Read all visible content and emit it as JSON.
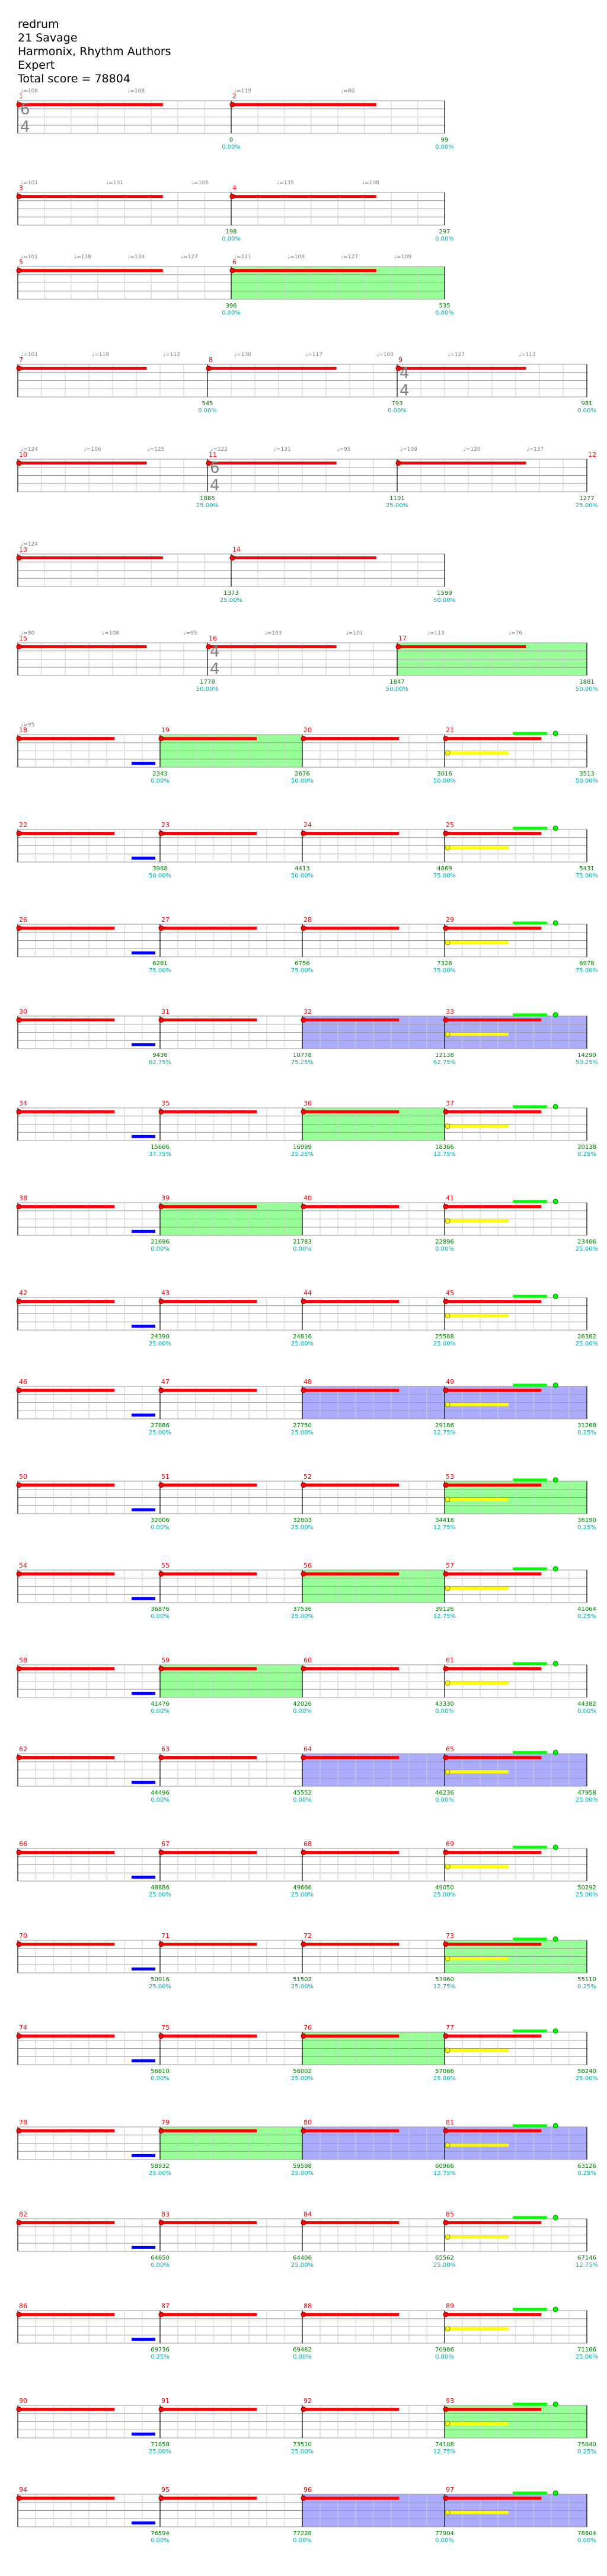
{
  "song": {
    "title": "redrum",
    "artist": "21 Savage",
    "charter": "Harmonix, Rhythm Authors",
    "difficulty": "Expert",
    "total_score_text": "Total score = 78804"
  },
  "colors": {
    "red_note": "#ff0000",
    "yellow_note": "#ffff00",
    "blue_note": "#0000ff",
    "green_note": "#00ff00",
    "orange_note": "#ff9900",
    "overdrive_fill": "#80ff80",
    "solo_fill": "#8080ff",
    "measure_number": "#ff0000",
    "score_text": "#007f00",
    "percent_text": "#00b0b0",
    "time_sig_text": "#808080"
  },
  "rows": [
    {
      "measures": [
        {
          "num": "1",
          "score": "",
          "pct": "",
          "ts": [
            "6",
            "4"
          ]
        },
        {
          "num": "2",
          "score": "0",
          "pct": "0.00%"
        },
        {
          "num": "",
          "score": "99",
          "pct": "0.00%"
        }
      ],
      "ticks": [
        "♩=108",
        "♩=108",
        "♩=119",
        "♩=80"
      ]
    },
    {
      "measures": [
        {
          "num": "3",
          "score": ""
        },
        {
          "num": "4",
          "score": "198",
          "pct": "0.00%"
        },
        {
          "num": "",
          "score": "297",
          "pct": "0.00%"
        }
      ],
      "ticks": [
        "♩=101",
        "♩=101",
        "♩=106",
        "♩=135",
        "♩=108"
      ]
    },
    {
      "measures": [
        {
          "num": "5",
          "score": ""
        },
        {
          "num": "6",
          "score": "396",
          "pct": "0.00%"
        },
        {
          "num": "",
          "score": "535",
          "pct": "0.00%"
        }
      ],
      "ticks": [
        "♩=101",
        "♩=138",
        "♩=134",
        "♩=127",
        "♩=121",
        "♩=108",
        "♩=127",
        "♩=109"
      ]
    },
    {
      "measures": [
        {
          "num": "7",
          "score": ""
        },
        {
          "num": "8",
          "score": "545",
          "pct": "0.00%"
        },
        {
          "num": "9",
          "score": "793",
          "pct": "0.00%",
          "ts": [
            "4",
            "4"
          ]
        },
        {
          "num": "",
          "score": "981",
          "pct": "0.00%"
        }
      ],
      "ticks": [
        "♩=101",
        "♩=119",
        "♩=112",
        "♩=130",
        "♩=117",
        "♩=100",
        "♩=127",
        "♩=112"
      ]
    },
    {
      "measures": [
        {
          "num": "10",
          "score": ""
        },
        {
          "num": "11",
          "score": "1885",
          "pct": "25.00%",
          "ts": [
            "6",
            "4"
          ]
        },
        {
          "num": "",
          "score": "1101",
          "pct": "25.00%"
        },
        {
          "num": "12",
          "score": "1277",
          "pct": "25.00%"
        }
      ],
      "ticks": [
        "♩=124",
        "♩=106",
        "♩=125",
        "♩=122",
        "♩=131",
        "♩=95",
        "♩=109",
        "♩=120",
        "♩=137"
      ]
    },
    {
      "measures": [
        {
          "num": "13",
          "score": ""
        },
        {
          "num": "14",
          "score": "1373",
          "pct": "25.00%"
        },
        {
          "num": "",
          "score": "1599",
          "pct": "50.00%"
        }
      ],
      "ticks": [
        "♩=124"
      ]
    },
    {
      "measures": [
        {
          "num": "15",
          "score": ""
        },
        {
          "num": "16",
          "score": "1778",
          "pct": "50.00%",
          "ts": [
            "4",
            "4"
          ]
        },
        {
          "num": "17",
          "score": "1847",
          "pct": "50.00%"
        },
        {
          "num": "",
          "score": "1881",
          "pct": "50.00%"
        }
      ],
      "ticks": [
        "♩=80",
        "♩=108",
        "♩=95",
        "♩=103",
        "♩=101",
        "♩=113",
        "♩=76"
      ]
    },
    {
      "measures": [
        {
          "num": "18",
          "score": ""
        },
        {
          "num": "19",
          "score": "2343",
          "pct": "0.00%"
        },
        {
          "num": "20",
          "score": "2676",
          "pct": "50.00%"
        },
        {
          "num": "21",
          "score": "3016",
          "pct": "50.00%"
        },
        {
          "num": "",
          "score": "3513",
          "pct": "50.00%"
        }
      ],
      "ticks": [
        "♩=95"
      ]
    },
    {
      "measures": [
        {
          "num": "22",
          "score": ""
        },
        {
          "num": "23",
          "score": "3968",
          "pct": "50.00%"
        },
        {
          "num": "24",
          "score": "4413",
          "pct": "50.00%"
        },
        {
          "num": "25",
          "score": "4869",
          "pct": "75.00%"
        },
        {
          "num": "",
          "score": "5431",
          "pct": "75.00%"
        }
      ]
    },
    {
      "measures": [
        {
          "num": "26",
          "score": ""
        },
        {
          "num": "27",
          "score": "6281",
          "pct": "75.00%"
        },
        {
          "num": "28",
          "score": "6756",
          "pct": "75.00%"
        },
        {
          "num": "29",
          "score": "7326",
          "pct": "75.00%"
        },
        {
          "num": "",
          "score": "6978",
          "pct": "75.00%"
        }
      ]
    },
    {
      "measures": [
        {
          "num": "30",
          "score": ""
        },
        {
          "num": "31",
          "score": "9436",
          "pct": "62.75%"
        },
        {
          "num": "32",
          "score": "10778",
          "pct": "75.25%"
        },
        {
          "num": "33",
          "score": "12138",
          "pct": "62.75%"
        },
        {
          "num": "",
          "score": "14290",
          "pct": "50.25%"
        }
      ]
    },
    {
      "measures": [
        {
          "num": "34",
          "score": ""
        },
        {
          "num": "35",
          "score": "15666",
          "pct": "37.75%"
        },
        {
          "num": "36",
          "score": "16999",
          "pct": "25.25%"
        },
        {
          "num": "37",
          "score": "18366",
          "pct": "12.75%"
        },
        {
          "num": "",
          "score": "20138",
          "pct": "0.25%"
        }
      ]
    },
    {
      "measures": [
        {
          "num": "38",
          "score": ""
        },
        {
          "num": "39",
          "score": "21696",
          "pct": "0.00%"
        },
        {
          "num": "40",
          "score": "21783",
          "pct": "0.00%"
        },
        {
          "num": "41",
          "score": "22896",
          "pct": "0.00%"
        },
        {
          "num": "",
          "score": "23466",
          "pct": "25.00%"
        }
      ]
    },
    {
      "measures": [
        {
          "num": "42",
          "score": ""
        },
        {
          "num": "43",
          "score": "24390",
          "pct": "25.00%"
        },
        {
          "num": "44",
          "score": "24816",
          "pct": "25.00%"
        },
        {
          "num": "45",
          "score": "25588",
          "pct": "25.00%"
        },
        {
          "num": "",
          "score": "26382",
          "pct": "25.00%"
        }
      ]
    },
    {
      "measures": [
        {
          "num": "46",
          "score": ""
        },
        {
          "num": "47",
          "score": "27886",
          "pct": "25.00%"
        },
        {
          "num": "48",
          "score": "27750",
          "pct": "25.00%"
        },
        {
          "num": "49",
          "score": "29186",
          "pct": "12.75%"
        },
        {
          "num": "",
          "score": "31268",
          "pct": "0.25%"
        }
      ]
    },
    {
      "measures": [
        {
          "num": "50",
          "score": ""
        },
        {
          "num": "51",
          "score": "32006",
          "pct": "0.00%"
        },
        {
          "num": "52",
          "score": "32803",
          "pct": "25.00%"
        },
        {
          "num": "53",
          "score": "34416",
          "pct": "12.75%"
        },
        {
          "num": "",
          "score": "36190",
          "pct": "0.25%"
        }
      ]
    },
    {
      "measures": [
        {
          "num": "54",
          "score": ""
        },
        {
          "num": "55",
          "score": "36876",
          "pct": "0.00%"
        },
        {
          "num": "56",
          "score": "37536",
          "pct": "25.00%"
        },
        {
          "num": "57",
          "score": "39126",
          "pct": "12.75%"
        },
        {
          "num": "",
          "score": "41064",
          "pct": "0.25%"
        }
      ]
    },
    {
      "measures": [
        {
          "num": "58",
          "score": ""
        },
        {
          "num": "59",
          "score": "41476",
          "pct": "0.00%"
        },
        {
          "num": "60",
          "score": "42026",
          "pct": "0.00%"
        },
        {
          "num": "61",
          "score": "43330",
          "pct": "0.00%"
        },
        {
          "num": "",
          "score": "44382",
          "pct": "0.00%"
        }
      ]
    },
    {
      "measures": [
        {
          "num": "62",
          "score": ""
        },
        {
          "num": "63",
          "score": "44496",
          "pct": "0.00%"
        },
        {
          "num": "64",
          "score": "45552",
          "pct": "0.00%"
        },
        {
          "num": "65",
          "score": "46236",
          "pct": "0.00%"
        },
        {
          "num": "",
          "score": "47958",
          "pct": "25.00%"
        }
      ]
    },
    {
      "measures": [
        {
          "num": "66",
          "score": ""
        },
        {
          "num": "67",
          "score": "48886",
          "pct": "25.00%"
        },
        {
          "num": "68",
          "score": "49666",
          "pct": "25.00%"
        },
        {
          "num": "69",
          "score": "49050",
          "pct": "25.00%"
        },
        {
          "num": "",
          "score": "50292",
          "pct": "25.00%"
        }
      ]
    },
    {
      "measures": [
        {
          "num": "70",
          "score": ""
        },
        {
          "num": "71",
          "score": "50016",
          "pct": "25.00%"
        },
        {
          "num": "72",
          "score": "51502",
          "pct": "25.00%"
        },
        {
          "num": "73",
          "score": "53960",
          "pct": "12.75%"
        },
        {
          "num": "",
          "score": "55110",
          "pct": "0.25%"
        }
      ]
    },
    {
      "measures": [
        {
          "num": "74",
          "score": ""
        },
        {
          "num": "75",
          "score": "56810",
          "pct": "0.00%"
        },
        {
          "num": "76",
          "score": "56002",
          "pct": "25.00%"
        },
        {
          "num": "77",
          "score": "57066",
          "pct": "25.00%"
        },
        {
          "num": "",
          "score": "58240",
          "pct": "25.00%"
        }
      ]
    },
    {
      "measures": [
        {
          "num": "78",
          "score": ""
        },
        {
          "num": "79",
          "score": "58932",
          "pct": "25.00%"
        },
        {
          "num": "80",
          "score": "59598",
          "pct": "25.00%"
        },
        {
          "num": "81",
          "score": "60966",
          "pct": "12.75%"
        },
        {
          "num": "",
          "score": "63126",
          "pct": "0.25%"
        }
      ]
    },
    {
      "measures": [
        {
          "num": "82",
          "score": ""
        },
        {
          "num": "83",
          "score": "64650",
          "pct": "0.00%"
        },
        {
          "num": "84",
          "score": "64406",
          "pct": "25.00%"
        },
        {
          "num": "85",
          "score": "65562",
          "pct": "25.00%"
        },
        {
          "num": "",
          "score": "67146",
          "pct": "12.75%"
        }
      ]
    },
    {
      "measures": [
        {
          "num": "86",
          "score": ""
        },
        {
          "num": "87",
          "score": "69736",
          "pct": "0.25%"
        },
        {
          "num": "88",
          "score": "69482",
          "pct": "0.00%"
        },
        {
          "num": "89",
          "score": "70986",
          "pct": "0.00%"
        },
        {
          "num": "",
          "score": "71166",
          "pct": "25.00%"
        }
      ]
    },
    {
      "measures": [
        {
          "num": "90",
          "score": ""
        },
        {
          "num": "91",
          "score": "71858",
          "pct": "25.00%"
        },
        {
          "num": "92",
          "score": "73510",
          "pct": "25.00%"
        },
        {
          "num": "93",
          "score": "74108",
          "pct": "12.75%"
        },
        {
          "num": "",
          "score": "75640",
          "pct": "0.25%"
        }
      ]
    },
    {
      "measures": [
        {
          "num": "94",
          "score": ""
        },
        {
          "num": "95",
          "score": "76594",
          "pct": "0.00%"
        },
        {
          "num": "96",
          "score": "77228",
          "pct": "0.00%"
        },
        {
          "num": "97",
          "score": "77904",
          "pct": "0.00%"
        },
        {
          "num": "",
          "score": "78804",
          "pct": "0.00%"
        }
      ]
    }
  ]
}
